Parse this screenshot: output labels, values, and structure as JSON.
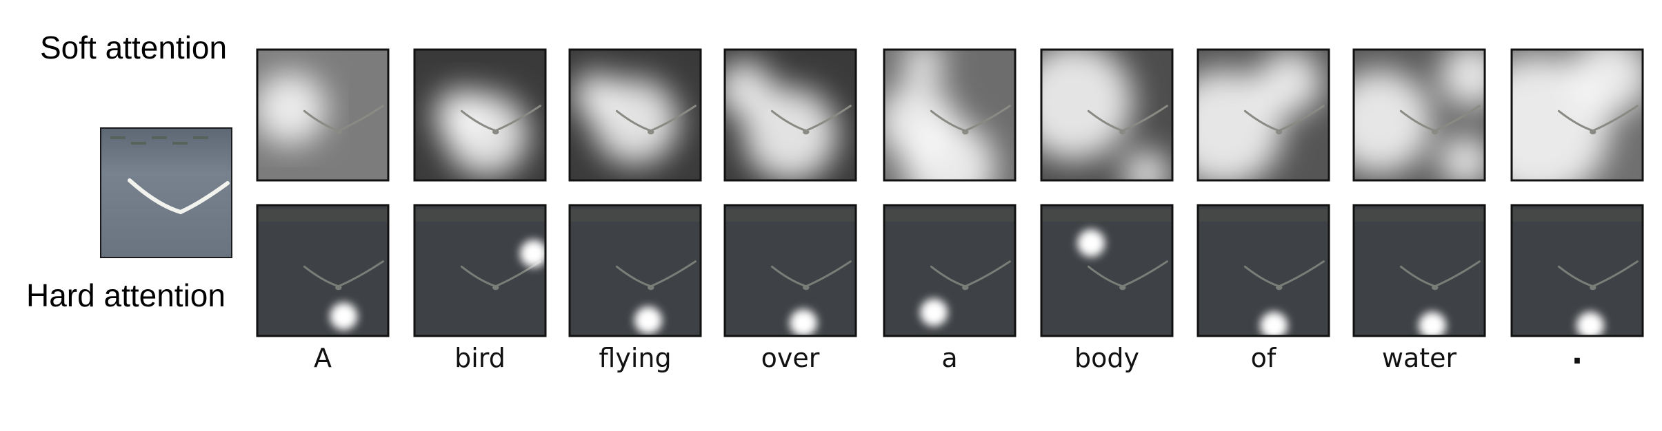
{
  "row_labels": {
    "soft": "Soft attention",
    "hard": "Hard attention"
  },
  "words": [
    "A",
    "bird",
    "flying",
    "over",
    "a",
    "body",
    "of",
    "water",
    "."
  ],
  "colors": {
    "water_dark": "#3e4145",
    "water_light": "#6c7580",
    "frame": "#111111",
    "attention": "#ffffff"
  },
  "icons": {
    "subject": "gull-in-flight-icon"
  }
}
